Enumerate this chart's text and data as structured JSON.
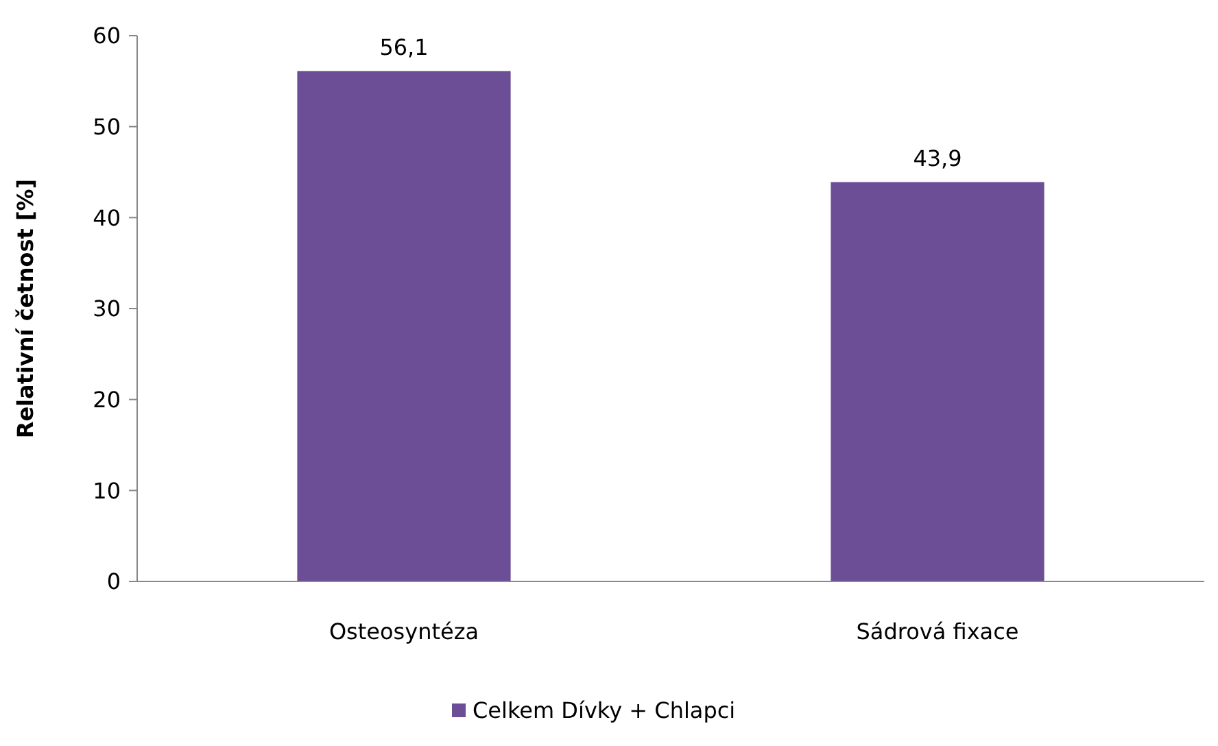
{
  "chart_data": {
    "type": "bar",
    "ylabel": "Relativní četnost [%]",
    "categories": [
      "Osteosyntéza",
      "Sádrová fixace"
    ],
    "series": [
      {
        "name": "Celkem Dívky + Chlapci",
        "color": "#6c4e96",
        "values": [
          56.1,
          43.9
        ],
        "value_labels": [
          "56,1",
          "43,9"
        ]
      }
    ],
    "ylim": [
      0,
      60
    ],
    "yticks": [
      0,
      10,
      20,
      30,
      40,
      50,
      60
    ],
    "grid": false,
    "legend": "bottom"
  }
}
